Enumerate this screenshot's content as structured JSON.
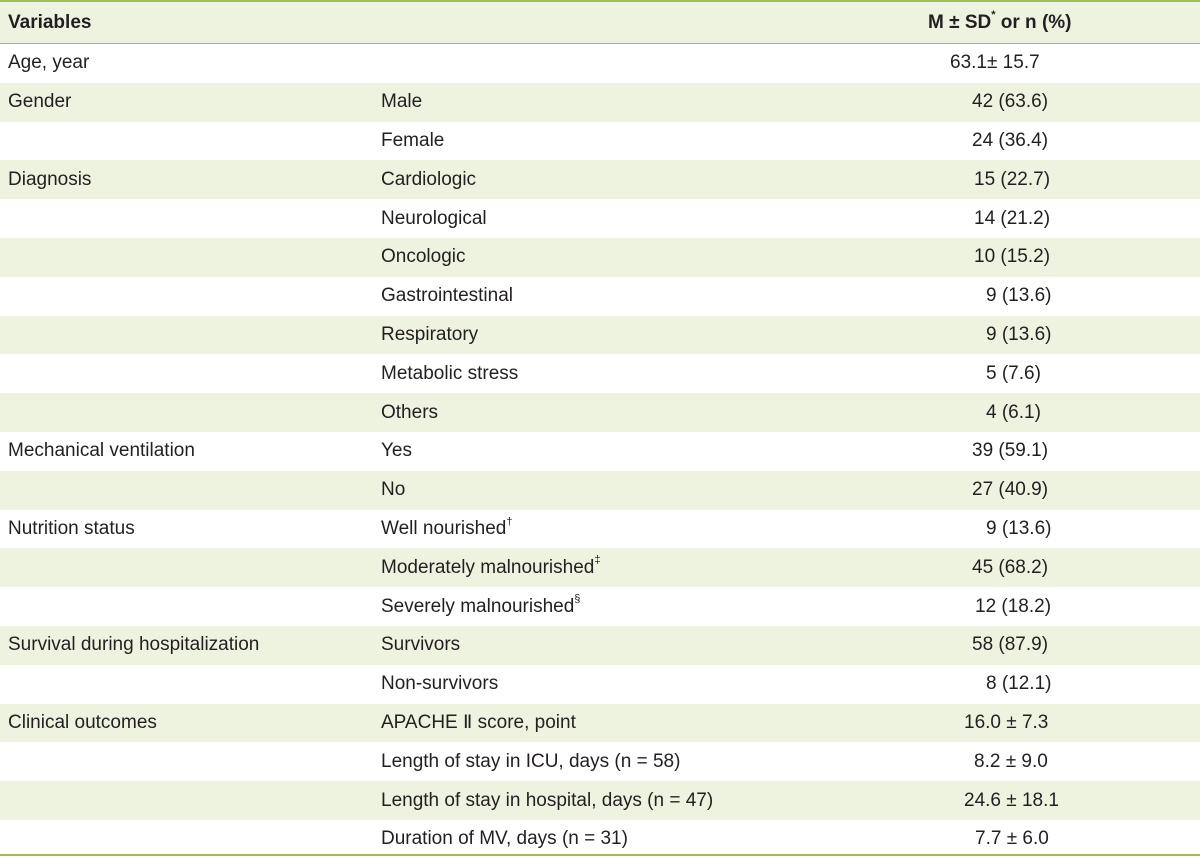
{
  "header": {
    "col_variables": "Variables",
    "col_value_prefix": "M ± SD",
    "col_value_sup": "*",
    "col_value_suffix": " or n (%)"
  },
  "rows": [
    {
      "variable": "Age, year",
      "sub": "",
      "sub_sup": "",
      "value": "63.1± 15.7"
    },
    {
      "variable": "Gender",
      "sub": "Male",
      "sub_sup": "",
      "value": "42 (63.6)"
    },
    {
      "variable": "",
      "sub": "Female",
      "sub_sup": "",
      "value": "24 (36.4)"
    },
    {
      "variable": "Diagnosis",
      "sub": "Cardiologic",
      "sub_sup": "",
      "value": "15 (22.7)"
    },
    {
      "variable": "",
      "sub": "Neurological",
      "sub_sup": "",
      "value": "14 (21.2)"
    },
    {
      "variable": "",
      "sub": "Oncologic",
      "sub_sup": "",
      "value": "10 (15.2)"
    },
    {
      "variable": "",
      "sub": "Gastrointestinal",
      "sub_sup": "",
      "value": "9 (13.6)"
    },
    {
      "variable": "",
      "sub": "Respiratory",
      "sub_sup": "",
      "value": "9 (13.6)"
    },
    {
      "variable": "",
      "sub": "Metabolic stress",
      "sub_sup": "",
      "value": "5 (7.6)"
    },
    {
      "variable": "",
      "sub": "Others",
      "sub_sup": "",
      "value": "4 (6.1)"
    },
    {
      "variable": "Mechanical ventilation",
      "sub": "Yes",
      "sub_sup": "",
      "value": "39 (59.1)"
    },
    {
      "variable": "",
      "sub": "No",
      "sub_sup": "",
      "value": "27 (40.9)"
    },
    {
      "variable": "Nutrition status",
      "sub": "Well nourished",
      "sub_sup": "†",
      "value": "9 (13.6)"
    },
    {
      "variable": "",
      "sub": "Moderately malnourished",
      "sub_sup": "‡",
      "value": "45 (68.2)"
    },
    {
      "variable": "",
      "sub": "Severely malnourished",
      "sub_sup": "§",
      "value": "12 (18.2)"
    },
    {
      "variable": "Survival during hospitalization",
      "sub": "Survivors",
      "sub_sup": "",
      "value": "58 (87.9)"
    },
    {
      "variable": "",
      "sub": "Non-survivors",
      "sub_sup": "",
      "value": "8 (12.1)"
    },
    {
      "variable": "Clinical outcomes",
      "sub": "APACHE Ⅱ score, point",
      "sub_sup": "",
      "value": "16.0 ± 7.3"
    },
    {
      "variable": "",
      "sub": "Length of stay in ICU, days (n = 58)",
      "sub_sup": "",
      "value": "8.2 ± 9.0"
    },
    {
      "variable": "",
      "sub": "Length of stay in hospital, days (n = 47)",
      "sub_sup": "",
      "value": "24.6 ± 18.1"
    },
    {
      "variable": "",
      "sub": "Duration of MV, days (n = 31)",
      "sub_sup": "",
      "value": "7.7 ± 6.0"
    }
  ]
}
